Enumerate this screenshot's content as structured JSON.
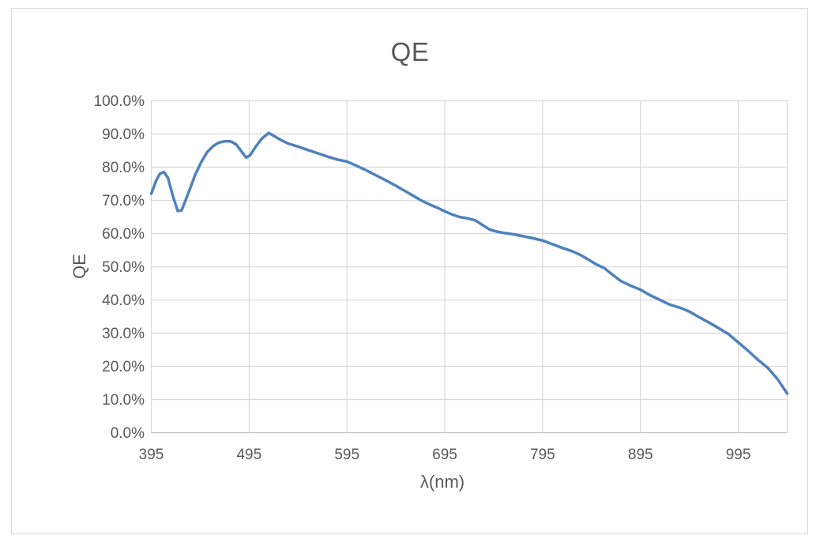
{
  "chart": {
    "title": "QE",
    "x_axis_title": "λ(nm)",
    "y_axis_title": "QE"
  },
  "chart_data": {
    "type": "line",
    "title": "QE",
    "xlabel": "λ(nm)",
    "ylabel": "QE",
    "xlim": [
      395,
      1045
    ],
    "ylim": [
      0,
      1
    ],
    "x_ticks": [
      395,
      495,
      595,
      695,
      795,
      895,
      995
    ],
    "y_tick_labels": [
      "0.0%",
      "10.0%",
      "20.0%",
      "30.0%",
      "40.0%",
      "50.0%",
      "60.0%",
      "70.0%",
      "80.0%",
      "90.0%",
      "100.0%"
    ],
    "grid": true,
    "legend": false,
    "colors": {
      "line": "#4F81BD",
      "gridline": "#D9D9D9",
      "axis_line": "#BFBFBF",
      "text": "#595959",
      "frame_border": "#D7D7D7"
    },
    "series": [
      {
        "name": "QE",
        "x": [
          395,
          400,
          404,
          408,
          412,
          417,
          422,
          426,
          430,
          435,
          440,
          446,
          452,
          458,
          464,
          470,
          476,
          482,
          487,
          492,
          496,
          502,
          508,
          515,
          521,
          528,
          535,
          545,
          555,
          565,
          575,
          585,
          595,
          605,
          615,
          625,
          635,
          645,
          655,
          665,
          672,
          680,
          688,
          695,
          703,
          710,
          718,
          726,
          734,
          741,
          748,
          755,
          765,
          775,
          785,
          795,
          805,
          815,
          825,
          834,
          842,
          850,
          858,
          866,
          875,
          885,
          895,
          905,
          915,
          925,
          935,
          945,
          955,
          965,
          975,
          985,
          995,
          1005,
          1015,
          1025,
          1035,
          1045
        ],
        "y": [
          0.72,
          0.76,
          0.781,
          0.785,
          0.768,
          0.714,
          0.668,
          0.67,
          0.7,
          0.738,
          0.778,
          0.815,
          0.845,
          0.863,
          0.874,
          0.878,
          0.878,
          0.868,
          0.848,
          0.829,
          0.836,
          0.863,
          0.886,
          0.903,
          0.893,
          0.881,
          0.871,
          0.862,
          0.852,
          0.842,
          0.832,
          0.823,
          0.817,
          0.804,
          0.79,
          0.775,
          0.76,
          0.744,
          0.727,
          0.71,
          0.698,
          0.687,
          0.677,
          0.667,
          0.657,
          0.65,
          0.646,
          0.64,
          0.625,
          0.612,
          0.606,
          0.602,
          0.598,
          0.592,
          0.586,
          0.579,
          0.568,
          0.557,
          0.547,
          0.535,
          0.521,
          0.507,
          0.496,
          0.477,
          0.457,
          0.443,
          0.431,
          0.414,
          0.4,
          0.386,
          0.377,
          0.365,
          0.348,
          0.332,
          0.315,
          0.297,
          0.272,
          0.247,
          0.22,
          0.196,
          0.162,
          0.118
        ]
      }
    ]
  }
}
